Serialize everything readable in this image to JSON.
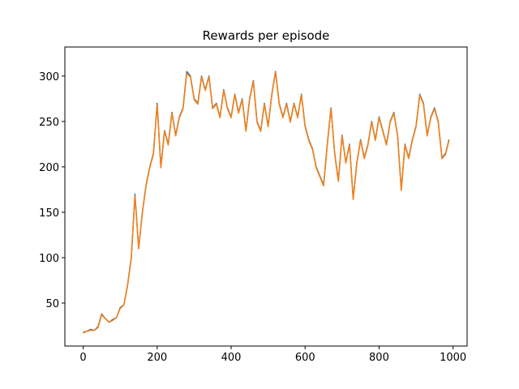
{
  "chart_data": {
    "type": "line",
    "title": "Rewards per episode",
    "x": [
      0,
      10,
      20,
      30,
      40,
      50,
      60,
      70,
      80,
      90,
      100,
      110,
      120,
      130,
      140,
      150,
      160,
      170,
      180,
      190,
      200,
      210,
      220,
      230,
      240,
      250,
      260,
      270,
      280,
      290,
      300,
      310,
      320,
      330,
      340,
      350,
      360,
      370,
      380,
      390,
      400,
      410,
      420,
      430,
      440,
      450,
      460,
      470,
      480,
      490,
      500,
      510,
      520,
      530,
      540,
      550,
      560,
      570,
      580,
      590,
      600,
      610,
      620,
      630,
      640,
      650,
      660,
      670,
      680,
      690,
      700,
      710,
      720,
      730,
      740,
      750,
      760,
      770,
      780,
      790,
      800,
      810,
      820,
      830,
      840,
      850,
      860,
      870,
      880,
      890,
      900,
      910,
      920,
      930,
      940,
      950,
      960,
      970,
      980,
      989
    ],
    "series": [
      {
        "color": "#1f77b4",
        "values": [
          18,
          19,
          21,
          20,
          24,
          38,
          33,
          29,
          32,
          34,
          45,
          48,
          70,
          100,
          170,
          110,
          150,
          180,
          200,
          215,
          270,
          200,
          240,
          225,
          260,
          235,
          255,
          265,
          305,
          300,
          275,
          270,
          300,
          285,
          300,
          265,
          270,
          255,
          285,
          265,
          255,
          280,
          260,
          275,
          240,
          275,
          295,
          250,
          240,
          270,
          245,
          280,
          305,
          270,
          255,
          270,
          250,
          270,
          255,
          280,
          245,
          230,
          220,
          200,
          190,
          180,
          225,
          265,
          215,
          185,
          235,
          205,
          225,
          165,
          205,
          230,
          210,
          225,
          250,
          230,
          255,
          240,
          225,
          250,
          260,
          235,
          175,
          225,
          210,
          230,
          245,
          280,
          270,
          235,
          255,
          265,
          250,
          210,
          215,
          230
        ]
      },
      {
        "color": "#ff7f0e",
        "values": [
          17,
          19,
          20,
          20,
          23,
          37,
          33,
          29,
          31,
          34,
          44,
          48,
          69,
          99,
          168,
          110,
          149,
          179,
          199,
          214,
          268,
          199,
          239,
          224,
          259,
          234,
          254,
          264,
          303,
          299,
          274,
          269,
          299,
          284,
          299,
          264,
          269,
          254,
          284,
          264,
          254,
          279,
          259,
          274,
          239,
          274,
          294,
          249,
          239,
          269,
          244,
          279,
          304,
          269,
          254,
          269,
          249,
          269,
          254,
          279,
          244,
          229,
          219,
          199,
          189,
          179,
          224,
          264,
          214,
          184,
          234,
          204,
          224,
          164,
          204,
          229,
          209,
          224,
          249,
          229,
          254,
          239,
          224,
          249,
          259,
          234,
          174,
          224,
          209,
          229,
          244,
          279,
          269,
          234,
          254,
          264,
          249,
          209,
          214,
          229
        ]
      }
    ],
    "xlim": [
      -49.5,
      1038
    ],
    "ylim": [
      2.7,
      332
    ],
    "xticks": [
      0,
      200,
      400,
      600,
      800,
      1000
    ],
    "yticks": [
      50,
      100,
      150,
      200,
      250,
      300
    ]
  }
}
